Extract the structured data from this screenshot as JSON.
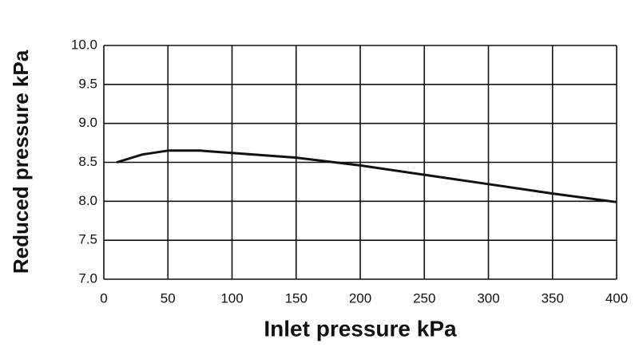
{
  "chart_data": {
    "type": "line",
    "xlabel": "Inlet pressure kPa",
    "ylabel": "Reduced pressure kPa",
    "x": [
      10,
      30,
      50,
      75,
      100,
      150,
      200,
      250,
      300,
      350,
      400
    ],
    "series": [
      {
        "color": "#111111",
        "values": [
          8.5,
          8.6,
          8.65,
          8.65,
          8.62,
          8.56,
          8.46,
          8.34,
          8.22,
          8.1,
          7.99
        ]
      }
    ],
    "xlim": [
      0,
      400
    ],
    "xticks": [
      0,
      50,
      100,
      150,
      200,
      250,
      300,
      350,
      400
    ],
    "ylim": [
      7,
      10
    ],
    "yticks": [
      {
        "value": 7,
        "label": "7.0"
      },
      7.5,
      {
        "value": 8,
        "label": "8.0"
      },
      8.5,
      {
        "value": 9,
        "label": "9.0"
      },
      9.5,
      {
        "value": 10,
        "label": "10.0"
      }
    ],
    "grid": true
  }
}
